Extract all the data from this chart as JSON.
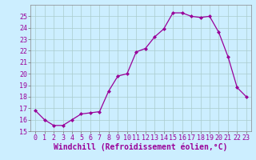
{
  "x": [
    0,
    1,
    2,
    3,
    4,
    5,
    6,
    7,
    8,
    9,
    10,
    11,
    12,
    13,
    14,
    15,
    16,
    17,
    18,
    19,
    20,
    21,
    22,
    23
  ],
  "y": [
    16.8,
    16.0,
    15.5,
    15.5,
    16.0,
    16.5,
    16.6,
    16.7,
    18.5,
    19.8,
    20.0,
    21.9,
    22.2,
    23.2,
    23.9,
    25.3,
    25.3,
    25.0,
    24.9,
    25.0,
    23.6,
    21.5,
    18.8,
    18.0
  ],
  "line_color": "#990099",
  "marker": "D",
  "marker_size": 2.0,
  "bg_color": "#cceeff",
  "grid_color": "#aacccc",
  "xlabel": "Windchill (Refroidissement éolien,°C)",
  "xlabel_fontsize": 7,
  "tick_fontsize": 6,
  "ylim": [
    15,
    26
  ],
  "xlim": [
    -0.5,
    23.5
  ],
  "yticks": [
    15,
    16,
    17,
    18,
    19,
    20,
    21,
    22,
    23,
    24,
    25
  ],
  "xticks": [
    0,
    1,
    2,
    3,
    4,
    5,
    6,
    7,
    8,
    9,
    10,
    11,
    12,
    13,
    14,
    15,
    16,
    17,
    18,
    19,
    20,
    21,
    22,
    23
  ]
}
